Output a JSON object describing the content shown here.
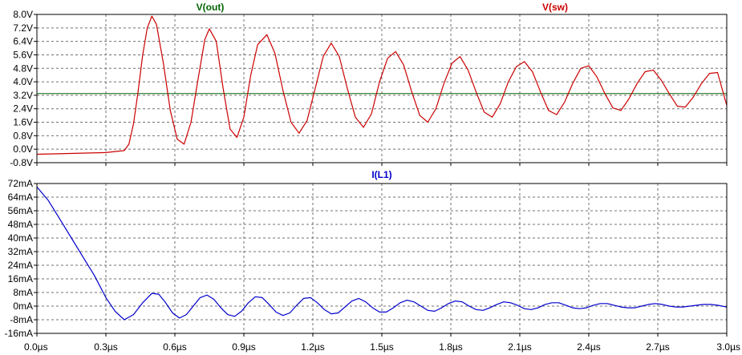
{
  "chart_data": [
    {
      "type": "line",
      "title": "",
      "traces": [
        {
          "name": "V(out)",
          "color": "#006400",
          "constant": 3.3
        },
        {
          "name": "V(sw)",
          "color": "#cc0000"
        }
      ],
      "ylim": [
        -0.8,
        8.0
      ],
      "ytick_values": [
        -0.8,
        0.0,
        0.8,
        1.6,
        2.4,
        3.2,
        4.0,
        4.8,
        5.6,
        6.4,
        7.2,
        8.0
      ],
      "ytick_labels": [
        "-0.8V",
        "0.0V",
        "0.8V",
        "1.6V",
        "2.4V",
        "3.2V",
        "4.0V",
        "4.8V",
        "5.6V",
        "6.4V",
        "7.2V",
        "8.0V"
      ],
      "series": [
        {
          "name": "V(sw)",
          "x": [
            0.0,
            0.3,
            0.38,
            0.4,
            0.42,
            0.44,
            0.46,
            0.48,
            0.5,
            0.52,
            0.55,
            0.58,
            0.61,
            0.64,
            0.67,
            0.7,
            0.73,
            0.75,
            0.78,
            0.81,
            0.84,
            0.87,
            0.9,
            0.93,
            0.96,
            1.0,
            1.035,
            1.07,
            1.105,
            1.14,
            1.175,
            1.21,
            1.245,
            1.28,
            1.315,
            1.35,
            1.385,
            1.42,
            1.455,
            1.49,
            1.525,
            1.56,
            1.595,
            1.63,
            1.665,
            1.7,
            1.735,
            1.77,
            1.805,
            1.84,
            1.875,
            1.91,
            1.945,
            1.98,
            2.015,
            2.05,
            2.085,
            2.12,
            2.155,
            2.19,
            2.225,
            2.26,
            2.295,
            2.33,
            2.365,
            2.4,
            2.435,
            2.47,
            2.505,
            2.54,
            2.575,
            2.61,
            2.645,
            2.68,
            2.715,
            2.75,
            2.785,
            2.82,
            2.855,
            2.89,
            2.925,
            2.96,
            3.0
          ],
          "y": [
            -0.3,
            -0.2,
            -0.08,
            0.3,
            1.5,
            3.4,
            5.6,
            7.2,
            7.9,
            7.4,
            5.1,
            2.3,
            0.6,
            0.3,
            1.6,
            4.1,
            6.5,
            7.15,
            6.4,
            3.6,
            1.2,
            0.7,
            1.9,
            4.4,
            6.2,
            6.8,
            5.7,
            3.5,
            1.6,
            0.95,
            1.7,
            3.6,
            5.5,
            6.3,
            5.5,
            3.6,
            1.9,
            1.3,
            2.1,
            4.0,
            5.4,
            5.8,
            5.0,
            3.4,
            2.0,
            1.6,
            2.4,
            3.9,
            5.1,
            5.5,
            4.7,
            3.4,
            2.2,
            1.9,
            2.7,
            4.0,
            4.9,
            5.2,
            4.6,
            3.4,
            2.3,
            2.05,
            2.8,
            3.9,
            4.8,
            4.95,
            4.3,
            3.3,
            2.45,
            2.3,
            3.0,
            3.9,
            4.6,
            4.7,
            4.1,
            3.3,
            2.55,
            2.5,
            3.1,
            3.9,
            4.5,
            4.55,
            2.6
          ]
        }
      ]
    },
    {
      "type": "line",
      "title": "",
      "traces": [
        {
          "name": "I(L1)",
          "color": "#0000cc"
        }
      ],
      "ylim": [
        -16,
        72
      ],
      "ytick_values": [
        -16,
        -8,
        0,
        8,
        16,
        24,
        32,
        40,
        48,
        56,
        64,
        72
      ],
      "ytick_labels": [
        "-16mA",
        "-8mA",
        "0mA",
        "8mA",
        "16mA",
        "24mA",
        "32mA",
        "40mA",
        "48mA",
        "56mA",
        "64mA",
        "72mA"
      ],
      "series": [
        {
          "name": "I(L1)",
          "x": [
            0.0,
            0.05,
            0.1,
            0.15,
            0.2,
            0.25,
            0.3,
            0.34,
            0.38,
            0.42,
            0.46,
            0.5,
            0.53,
            0.56,
            0.59,
            0.62,
            0.65,
            0.68,
            0.71,
            0.74,
            0.77,
            0.8,
            0.83,
            0.86,
            0.89,
            0.92,
            0.95,
            0.98,
            1.01,
            1.04,
            1.07,
            1.1,
            1.13,
            1.16,
            1.19,
            1.22,
            1.25,
            1.28,
            1.31,
            1.34,
            1.37,
            1.4,
            1.43,
            1.46,
            1.49,
            1.52,
            1.55,
            1.58,
            1.61,
            1.64,
            1.67,
            1.7,
            1.73,
            1.76,
            1.79,
            1.82,
            1.85,
            1.88,
            1.91,
            1.94,
            1.97,
            2.0,
            2.03,
            2.06,
            2.09,
            2.12,
            2.15,
            2.18,
            2.21,
            2.24,
            2.27,
            2.3,
            2.33,
            2.36,
            2.39,
            2.42,
            2.45,
            2.48,
            2.51,
            2.54,
            2.57,
            2.6,
            2.63,
            2.66,
            2.69,
            2.72,
            2.75,
            2.78,
            2.81,
            2.84,
            2.87,
            2.9,
            2.93,
            2.96,
            3.0
          ],
          "y": [
            70.0,
            62.0,
            51.0,
            40.0,
            29.0,
            18.0,
            5.0,
            -3.0,
            -8.0,
            -5.0,
            2.0,
            7.5,
            7.0,
            2.0,
            -4.0,
            -7.0,
            -5.0,
            0.0,
            5.0,
            6.5,
            4.0,
            -1.0,
            -5.0,
            -6.0,
            -3.0,
            2.0,
            5.5,
            5.0,
            1.0,
            -3.5,
            -5.5,
            -4.0,
            0.5,
            4.5,
            5.0,
            2.0,
            -2.0,
            -4.5,
            -4.0,
            -0.5,
            3.0,
            4.5,
            2.5,
            -1.0,
            -3.5,
            -3.5,
            -1.0,
            2.0,
            3.5,
            2.5,
            0.0,
            -2.5,
            -3.0,
            -1.0,
            1.5,
            3.0,
            2.5,
            0.0,
            -2.0,
            -2.5,
            -1.0,
            1.0,
            2.5,
            2.0,
            0.5,
            -1.5,
            -2.0,
            -1.0,
            1.0,
            2.0,
            2.0,
            0.5,
            -1.0,
            -1.5,
            -1.0,
            0.5,
            1.5,
            1.5,
            0.5,
            -0.5,
            -1.0,
            -1.0,
            0.0,
            1.0,
            1.5,
            1.0,
            0.0,
            -0.5,
            -0.5,
            0.0,
            0.5,
            1.0,
            1.0,
            0.5,
            -0.5
          ]
        }
      ]
    }
  ],
  "x_axis": {
    "xlim": [
      0.0,
      3.0
    ],
    "tick_values": [
      0.0,
      0.3,
      0.6,
      0.9,
      1.2,
      1.5,
      1.8,
      2.1,
      2.4,
      2.7,
      3.0
    ],
    "tick_labels": [
      "0.0µs",
      "0.3µs",
      "0.6µs",
      "0.9µs",
      "1.2µs",
      "1.5µs",
      "1.8µs",
      "2.1µs",
      "2.4µs",
      "2.7µs",
      "3.0µs"
    ]
  },
  "grid": true
}
